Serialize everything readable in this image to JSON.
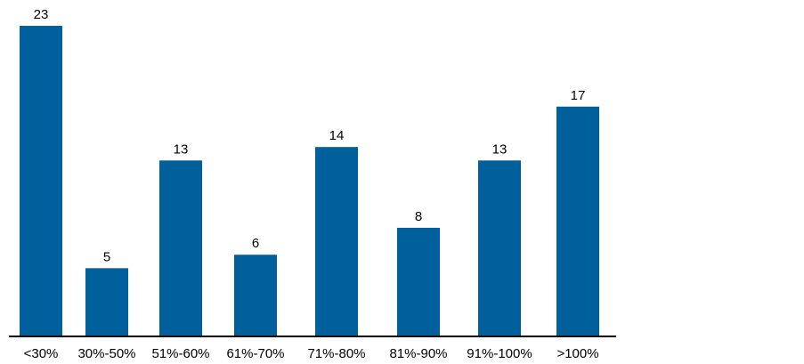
{
  "chart_data": {
    "type": "bar",
    "categories": [
      "<30%",
      "30%-50%",
      "51%-60%",
      "61%-70%",
      "71%-80%",
      "81%-90%",
      "91%-100%",
      ">100%"
    ],
    "values": [
      23,
      5,
      13,
      6,
      14,
      8,
      13,
      17
    ],
    "title": "",
    "xlabel": "",
    "ylabel": "",
    "ylim": [
      0,
      23
    ],
    "grid": false,
    "data_labels": true,
    "bar_color": "#00609c"
  }
}
